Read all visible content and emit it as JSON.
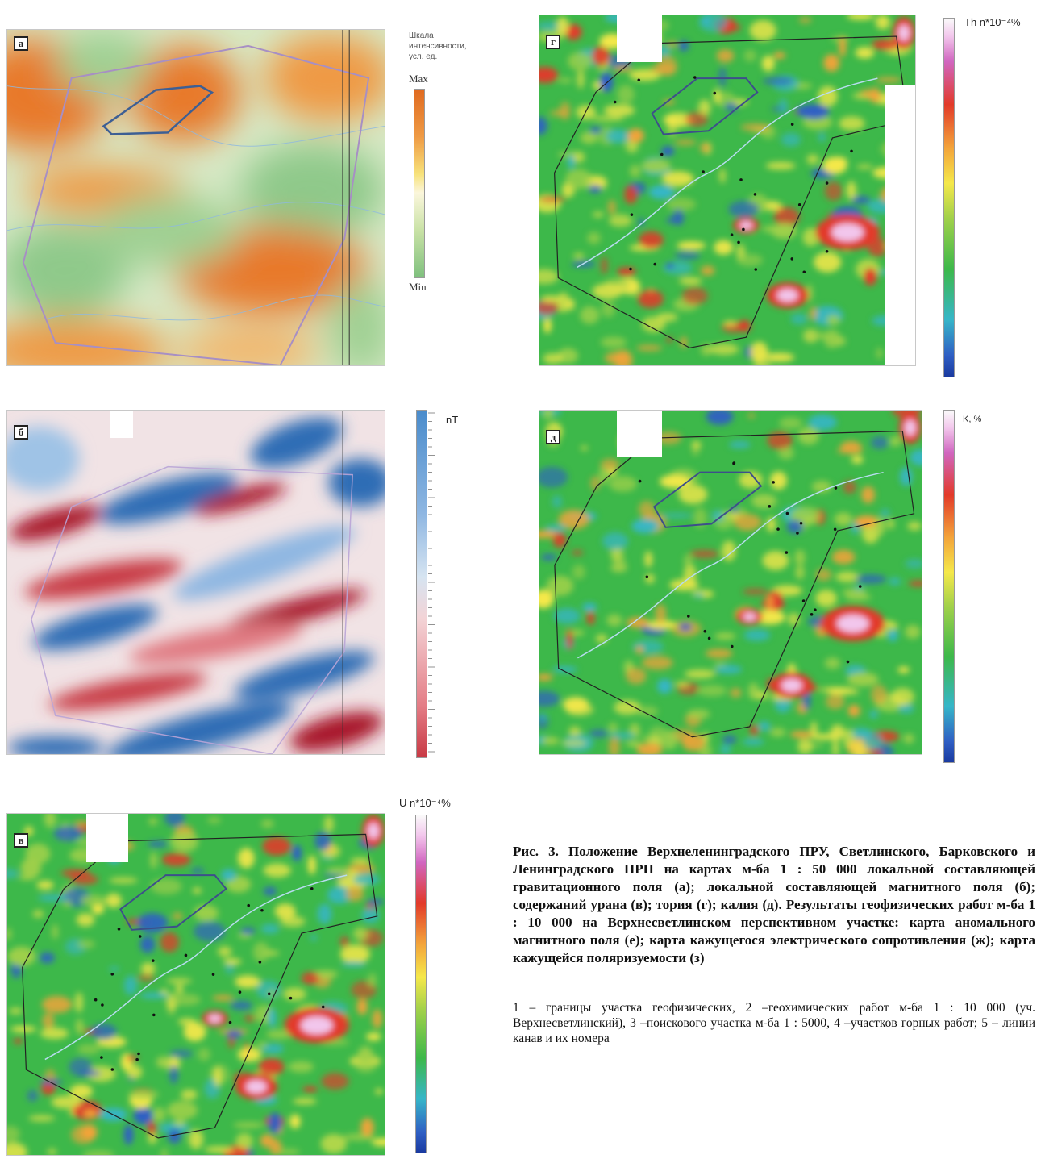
{
  "panels": {
    "a": {
      "letter": "а",
      "legend_title": "Шкала интенсивности, усл. ед.",
      "max": "Max",
      "min": "Min"
    },
    "b": {
      "letter": "б",
      "unit": "nT"
    },
    "v": {
      "letter": "в",
      "unit": "U n*10⁻⁴%"
    },
    "g": {
      "letter": "г",
      "unit": "Th n*10⁻⁴%"
    },
    "d": {
      "letter": "д",
      "unit": "K, %"
    }
  },
  "caption": {
    "title": "Рис. 3. Положение Верхнеленинградского ПРУ, Светлинского, Барковского и Ленинградского ПРП на картах м-ба 1 : 50 000 локальной составляющей гравитационного поля (а); локальной составляющей магнитного поля (б); содержаний урана (в); тория (г); калия (д). Результаты геофизических работ м-ба 1 : 10 000 на Верхнесветлинском перспективном участке: карта аномального магнитного поля (е); карта кажущегося электрического сопротивления (ж); карта кажущейся поляризуемости (з)",
    "legend": "1 – границы участка геофизических, 2 –геохимических работ м-ба 1 : 10 000 (уч. Верхнесветлинский), 3 –поискового участка м-ба 1 : 5000, 4 –участков горных работ; 5 – линии канав и их номера"
  },
  "colors": {
    "grav_max": "#e8792a",
    "grav_min": "#8fc98a",
    "mag_pos": "#c83a45",
    "mag_neg": "#2f6db5",
    "radio_low": "#2f5fc4",
    "radio_mid": "#3db84a",
    "radio_high": "#e23a2a",
    "radio_peak": "#f2c6ec"
  }
}
